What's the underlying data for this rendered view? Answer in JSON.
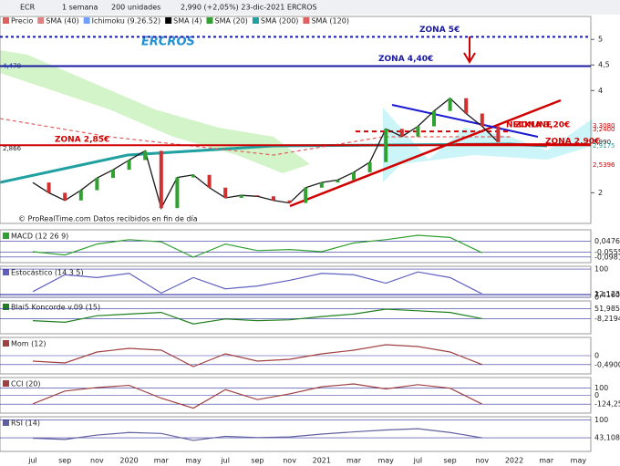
{
  "toolbar": {
    "symbol": "ECR",
    "period": "1 semana",
    "units": "200 unidades",
    "quote": "2,990 (+2,05%) 23-dic-2021 ERCROS"
  },
  "legend": [
    {
      "name": "Precio",
      "color": "#e06060"
    },
    {
      "name": "SMA (40)",
      "color": "#e08080"
    },
    {
      "name": "Ichimoku (9.26.52)",
      "color": "#70a0ff"
    },
    {
      "name": "SMA (4)",
      "color": "#000000"
    },
    {
      "name": "SMA (20)",
      "color": "#30a030"
    },
    {
      "name": "SMA (200)",
      "color": "#20a0a0"
    },
    {
      "name": "SMA (120)",
      "color": "#e06060"
    }
  ],
  "title": "ERCROS",
  "credit": "© ProRealTime.com Datos recibidos en fin de día",
  "months": [
    "jul",
    "sep",
    "nov",
    "2020",
    "mar",
    "may",
    "jul",
    "sep",
    "nov",
    "2021",
    "mar",
    "may",
    "jul",
    "sep",
    "nov",
    "2022",
    "mar",
    "may"
  ],
  "price": {
    "ylim": [
      1.4,
      5.45
    ],
    "yticks": [
      2,
      4,
      {
        "value": 4.5,
        "label": "4,5"
      },
      5
    ],
    "color": "#1a1a1a",
    "values": [
      2.2,
      2.0,
      1.85,
      2.05,
      2.29,
      2.45,
      2.64,
      2.82,
      1.7,
      2.3,
      2.35,
      2.1,
      1.9,
      1.95,
      1.93,
      1.85,
      1.8,
      2.1,
      2.2,
      2.25,
      2.4,
      2.6,
      3.25,
      3.1,
      3.3,
      3.6,
      3.85,
      3.55,
      3.3,
      2.99
    ],
    "price_labels": [
      {
        "value": 4.478,
        "label": "4,478",
        "side": "left",
        "color": "#1a1aa0"
      },
      {
        "value": 2.866,
        "label": "2,866",
        "side": "left",
        "color": "#1a1a1a"
      },
      {
        "value": 3.308,
        "label": "3,3080",
        "side": "right",
        "color": "#d00000"
      },
      {
        "value": 3.24,
        "label": "3,2400",
        "side": "right",
        "color": "#d00000"
      },
      {
        "value": 2.99,
        "label": "2,990",
        "side": "right",
        "color": "#1a1a1a"
      },
      {
        "value": 2.9175,
        "label": "2,9175",
        "side": "right",
        "color": "#20a0a0"
      },
      {
        "value": 2.5396,
        "label": "2,5396",
        "side": "right",
        "color": "#d00000"
      }
    ],
    "zones": [
      {
        "label": "ZONA 5€",
        "value": 5.05,
        "color": "#1a1aa0",
        "dash": "3,3"
      },
      {
        "label": "ZONA 4,40€",
        "value": 4.478,
        "color": "#1a1aa0",
        "dash": "none"
      },
      {
        "label": "ZONA 2,85€",
        "value": 2.93,
        "color": "#d00000",
        "dash": "none"
      },
      {
        "label": "ZONA 3,20€",
        "value": 3.2,
        "color": "#d00000",
        "dash": "5,4"
      },
      {
        "label": "ZONA 2,90€",
        "value": 2.95,
        "color": "#d00000",
        "dash": "none"
      }
    ],
    "neckline": "NECKLINE"
  },
  "panels": [
    {
      "name": "MACD (12 26 9)",
      "color": "#30a030",
      "ylim": [
        -0.15,
        0.15
      ],
      "values": [
        -0.05,
        -0.08,
        0.02,
        0.06,
        0.04,
        -0.1,
        0.02,
        -0.04,
        -0.03,
        -0.05,
        0.03,
        0.06,
        0.1,
        0.08,
        -0.06
      ],
      "labels": [
        {
          "value": 0.0476,
          "label": "0,0476"
        },
        {
          "value": -0.0555,
          "label": "-0,0555"
        },
        {
          "value": -0.0981,
          "label": "-0,0981"
        }
      ]
    },
    {
      "name": "Estocástico (14 3 5)",
      "color": "#6060c0",
      "ylim": [
        0,
        110
      ],
      "values": [
        20,
        80,
        70,
        85,
        15,
        70,
        30,
        40,
        60,
        85,
        80,
        50,
        90,
        70,
        12
      ],
      "labels": [
        100,
        {
          "value": 12.123,
          "label": "12,123"
        },
        {
          "value": 7.416,
          "label": "7,4160"
        },
        0
      ]
    },
    {
      "name": "Blai5 Koncorde v.09 (15)",
      "color": "#208020",
      "ylim": [
        -100,
        100
      ],
      "values": [
        -20,
        -30,
        10,
        20,
        30,
        -40,
        -10,
        -20,
        -15,
        5,
        20,
        50,
        40,
        30,
        -8
      ],
      "labels": [
        {
          "value": 51.985,
          "label": "51,985"
        },
        {
          "value": -8.2194,
          "label": "-8,2194"
        }
      ]
    },
    {
      "name": "Mom (12)",
      "color": "#a04040",
      "ylim": [
        -1,
        1
      ],
      "values": [
        -0.3,
        -0.4,
        0.2,
        0.4,
        0.3,
        -0.6,
        0.1,
        -0.3,
        -0.2,
        0.1,
        0.3,
        0.6,
        0.5,
        0.2,
        -0.49
      ],
      "labels": [
        0,
        {
          "value": -0.49,
          "label": "-0,4900"
        }
      ]
    },
    {
      "name": "CCI (20)",
      "color": "#a04040",
      "ylim": [
        -250,
        250
      ],
      "values": [
        -120,
        60,
        110,
        140,
        -40,
        -180,
        80,
        -60,
        20,
        120,
        160,
        90,
        150,
        100,
        -124.25
      ],
      "labels": [
        100,
        0,
        {
          "value": -124.25,
          "label": "-124,25"
        }
      ]
    },
    {
      "name": "RSI (14)",
      "color": "#6060a0",
      "ylim": [
        0,
        110
      ],
      "values": [
        42,
        38,
        52,
        60,
        57,
        35,
        48,
        44,
        46,
        55,
        62,
        68,
        72,
        60,
        43.108
      ],
      "labels": [
        100,
        {
          "value": 43.108,
          "label": "43,108"
        }
      ]
    }
  ]
}
